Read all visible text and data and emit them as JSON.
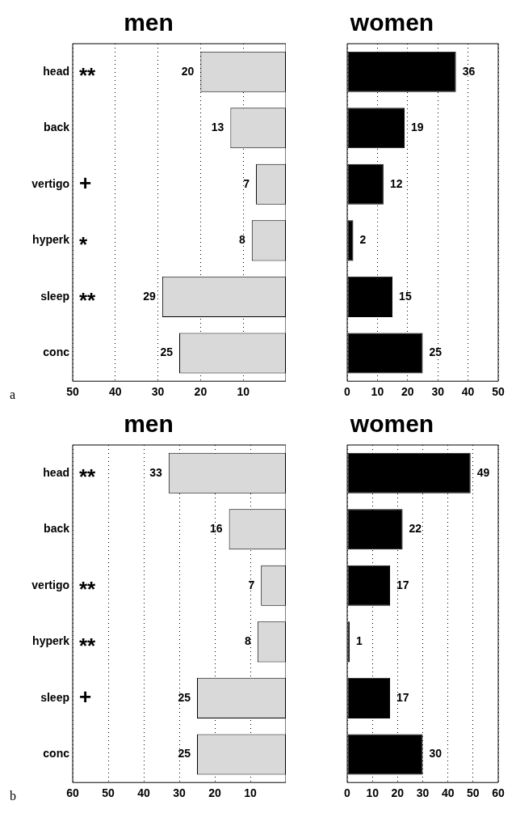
{
  "chart_data": [
    {
      "type": "bar",
      "orientation": "horizontal",
      "title": "men",
      "grid": "x",
      "line_style": "dotted",
      "legend": false,
      "categories": [
        "head",
        "back",
        "vertigo",
        "hyperk",
        "sleep",
        "conc"
      ],
      "series": [
        {
          "color": "#d9d9d9",
          "values": [
            20,
            13,
            7,
            8,
            29,
            25
          ]
        }
      ],
      "data_labels": true,
      "xlim": [
        50,
        0
      ],
      "xticks": [
        50,
        40,
        30,
        20,
        10
      ],
      "annotations": [
        "**",
        null,
        "+",
        "*",
        "**",
        null,
        "a"
      ]
    },
    {
      "type": "bar",
      "orientation": "horizontal",
      "title": "women",
      "grid": "x",
      "line_style": "dotted",
      "legend": false,
      "categories": [
        null,
        null,
        null,
        null,
        null,
        null
      ],
      "series": [
        {
          "color": "#000000",
          "values": [
            36,
            19,
            12,
            2,
            15,
            25
          ]
        }
      ],
      "data_labels": true,
      "xlim": [
        0,
        50
      ],
      "xticks": [
        0,
        10,
        20,
        30,
        40,
        50
      ]
    },
    {
      "type": "bar",
      "orientation": "horizontal",
      "title": "men",
      "grid": "x",
      "line_style": "dotted",
      "legend": false,
      "categories": [
        "head",
        "back",
        "vertigo",
        "hyperk",
        "sleep",
        "conc"
      ],
      "series": [
        {
          "color": "#d9d9d9",
          "values": [
            33,
            16,
            7,
            8,
            25,
            25
          ]
        }
      ],
      "data_labels": true,
      "xlim": [
        60,
        0
      ],
      "xticks": [
        60,
        50,
        40,
        30,
        20,
        10
      ],
      "annotations": [
        "**",
        null,
        "**",
        "**",
        "+",
        null,
        "b"
      ]
    },
    {
      "type": "bar",
      "orientation": "horizontal",
      "title": "women",
      "grid": "x",
      "line_style": "dotted",
      "legend": false,
      "categories": [
        null,
        null,
        null,
        null,
        null,
        null
      ],
      "series": [
        {
          "color": "#000000",
          "values": [
            49,
            22,
            17,
            1,
            17,
            30
          ]
        }
      ],
      "data_labels": true,
      "xlim": [
        0,
        60
      ],
      "xticks": [
        0,
        10,
        20,
        30,
        40,
        50,
        60
      ]
    }
  ]
}
